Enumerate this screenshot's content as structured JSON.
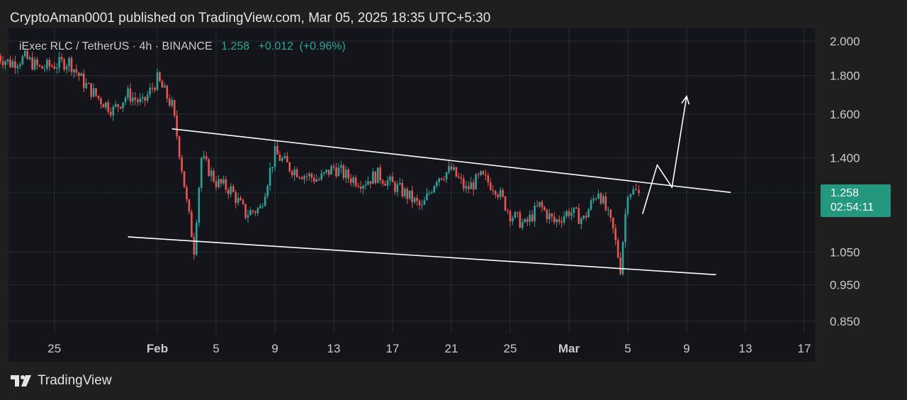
{
  "header": {
    "published": "CryptoAman0001 published on TradingView.com, Mar 05, 2025 18:35 UTC+5:30"
  },
  "legend": {
    "symbol": "iExec RLC / TetherUS · 4h · BINANCE",
    "price": "1.258",
    "change": "+0.012",
    "change_pct": "(+0.96%)"
  },
  "price_badge": {
    "price": "1.258",
    "countdown": "02:54:11"
  },
  "footer": {
    "brand": "TradingView"
  },
  "colors": {
    "background": "#1f1f20",
    "chart_bg": "#14151b",
    "up": "#26a69a",
    "down": "#ef5350",
    "grid": "#2a2c35",
    "annotation": "#ffffff",
    "badge": "#24977f"
  },
  "chart_data": {
    "type": "candlestick",
    "pair": "RLC/USDT",
    "timeframe": "4h",
    "exchange": "BINANCE",
    "y_scale": "log",
    "ylim": [
      0.8,
      2.05
    ],
    "y_ticks": [
      {
        "value": 2.0,
        "label": "2.000"
      },
      {
        "value": 1.8,
        "label": "1.800"
      },
      {
        "value": 1.6,
        "label": "1.600"
      },
      {
        "value": 1.4,
        "label": "1.400"
      },
      {
        "value": 1.05,
        "label": "1.050"
      },
      {
        "value": 0.95,
        "label": "0.950"
      },
      {
        "value": 0.85,
        "label": "0.850"
      }
    ],
    "x_ticks": [
      {
        "label": "25",
        "date": "2025-01-25",
        "bold": false
      },
      {
        "label": "Feb",
        "date": "2025-02-01",
        "bold": true
      },
      {
        "label": "5",
        "date": "2025-02-05",
        "bold": false
      },
      {
        "label": "9",
        "date": "2025-02-09",
        "bold": false
      },
      {
        "label": "13",
        "date": "2025-02-13",
        "bold": false
      },
      {
        "label": "17",
        "date": "2025-02-17",
        "bold": false
      },
      {
        "label": "21",
        "date": "2025-02-21",
        "bold": false
      },
      {
        "label": "25",
        "date": "2025-02-25",
        "bold": false
      },
      {
        "label": "Mar",
        "date": "2025-03-01",
        "bold": true
      },
      {
        "label": "5",
        "date": "2025-03-05",
        "bold": false
      },
      {
        "label": "9",
        "date": "2025-03-09",
        "bold": false
      },
      {
        "label": "13",
        "date": "2025-03-13",
        "bold": false
      },
      {
        "label": "17",
        "date": "2025-03-17",
        "bold": false
      }
    ],
    "last_price": 1.258,
    "price_path": [
      [
        "2025-01-21",
        1.92
      ],
      [
        "2025-01-22",
        1.87
      ],
      [
        "2025-01-23",
        1.9
      ],
      [
        "2025-01-24",
        1.84
      ],
      [
        "2025-01-25",
        1.86
      ],
      [
        "2025-01-26",
        1.88
      ],
      [
        "2025-01-27",
        1.76
      ],
      [
        "2025-01-28",
        1.68
      ],
      [
        "2025-01-29",
        1.62
      ],
      [
        "2025-01-30",
        1.7
      ],
      [
        "2025-01-31",
        1.65
      ],
      [
        "2025-02-01",
        1.78
      ],
      [
        "2025-02-02",
        1.64
      ],
      [
        "2025-02-03",
        1.22
      ],
      [
        "2025-02-03T12:00",
        1.06
      ],
      [
        "2025-02-04",
        1.4
      ],
      [
        "2025-02-05",
        1.3
      ],
      [
        "2025-02-06",
        1.27
      ],
      [
        "2025-02-07",
        1.18
      ],
      [
        "2025-02-08",
        1.2
      ],
      [
        "2025-02-09",
        1.42
      ],
      [
        "2025-02-10",
        1.36
      ],
      [
        "2025-02-11",
        1.33
      ],
      [
        "2025-02-12",
        1.31
      ],
      [
        "2025-02-13",
        1.36
      ],
      [
        "2025-02-14",
        1.32
      ],
      [
        "2025-02-15",
        1.3
      ],
      [
        "2025-02-16",
        1.33
      ],
      [
        "2025-02-17",
        1.29
      ],
      [
        "2025-02-18",
        1.25
      ],
      [
        "2025-02-19",
        1.2
      ],
      [
        "2025-02-20",
        1.32
      ],
      [
        "2025-02-21",
        1.35
      ],
      [
        "2025-02-22",
        1.27
      ],
      [
        "2025-02-23",
        1.32
      ],
      [
        "2025-02-24",
        1.28
      ],
      [
        "2025-02-25",
        1.18
      ],
      [
        "2025-02-26",
        1.14
      ],
      [
        "2025-02-27",
        1.21
      ],
      [
        "2025-02-28",
        1.15
      ],
      [
        "2025-03-01",
        1.19
      ],
      [
        "2025-03-02",
        1.16
      ],
      [
        "2025-03-03",
        1.27
      ],
      [
        "2025-03-04",
        1.12
      ],
      [
        "2025-03-04T12:00",
        1.0
      ],
      [
        "2025-03-05",
        1.27
      ],
      [
        "2025-03-05T18:00",
        1.258
      ]
    ],
    "trendlines": [
      {
        "name": "upper",
        "from": [
          "2025-02-02",
          1.53
        ],
        "to": [
          "2025-03-12",
          1.26
        ]
      },
      {
        "name": "lower",
        "from": [
          "2025-01-30",
          1.1
        ],
        "to": [
          "2025-03-11",
          0.98
        ]
      }
    ],
    "projection": [
      [
        "2025-03-06",
        1.18
      ],
      [
        "2025-03-07",
        1.37
      ],
      [
        "2025-03-08",
        1.28
      ],
      [
        "2025-03-09",
        1.69
      ]
    ]
  }
}
